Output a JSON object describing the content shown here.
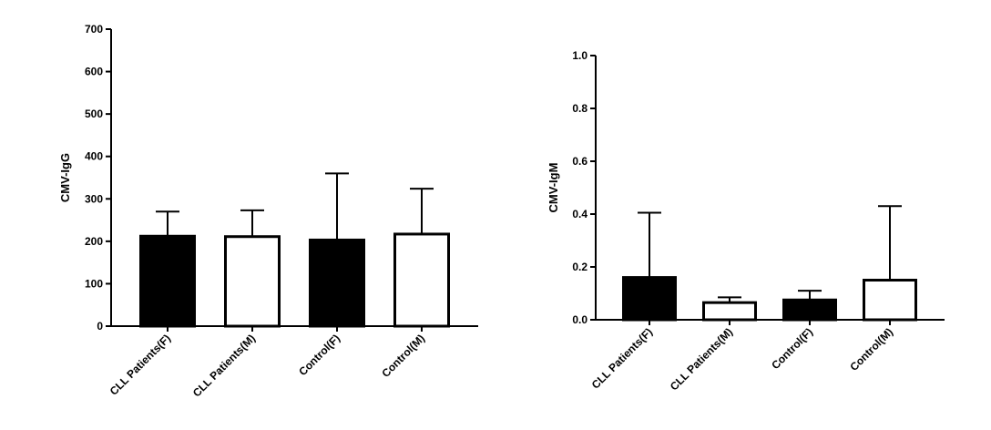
{
  "chart_data": [
    {
      "type": "bar",
      "categories": [
        "CLL Patients(F)",
        "CLL Patients(M)",
        "Control(F)",
        "Control(M)"
      ],
      "values": [
        212,
        211,
        203,
        217
      ],
      "error_upper": [
        270,
        273,
        360,
        324
      ],
      "fills": [
        "#000000",
        "#ffffff",
        "#000000",
        "#ffffff"
      ],
      "ylabel": "CMV-IgG",
      "ylim": [
        0,
        700
      ],
      "yticks": [
        "0",
        "100",
        "200",
        "300",
        "400",
        "500",
        "600",
        "700"
      ],
      "grid": false
    },
    {
      "type": "bar",
      "categories": [
        "CLL Patients(F)",
        "CLL Patients(M)",
        "Control(F)",
        "Control(M)"
      ],
      "values": [
        0.16,
        0.065,
        0.075,
        0.15
      ],
      "error_upper": [
        0.405,
        0.085,
        0.11,
        0.43
      ],
      "fills": [
        "#000000",
        "#ffffff",
        "#000000",
        "#ffffff"
      ],
      "ylabel": "CMV-IgM",
      "ylim": [
        0,
        1.0
      ],
      "yticks": [
        "0.0",
        "0.2",
        "0.4",
        "0.6",
        "0.8",
        "1.0"
      ],
      "grid": false
    }
  ]
}
